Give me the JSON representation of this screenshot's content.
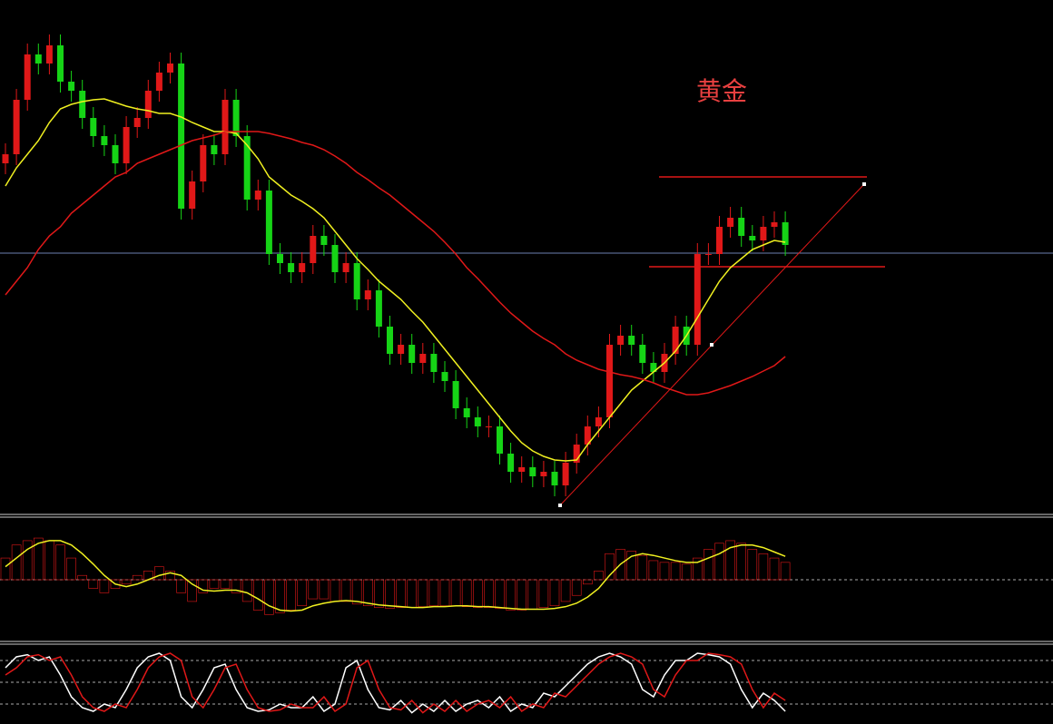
{
  "chart_data": [
    {
      "type": "candlestick",
      "title": "黄金",
      "ylim": [
        0,
        565
      ],
      "up_color": "#e01818",
      "down_color": "#16d416",
      "open": [
        385,
        395,
        455,
        505,
        495,
        515,
        475,
        465,
        435,
        415,
        405,
        385,
        425,
        435,
        465,
        485,
        495,
        335,
        365,
        405,
        395,
        455,
        415,
        345,
        355,
        285,
        275,
        265,
        275,
        305,
        295,
        265,
        275,
        235,
        245,
        205,
        175,
        185,
        165,
        175,
        155,
        145,
        115,
        105,
        95,
        95,
        65,
        45,
        50,
        40,
        45,
        30,
        55,
        75,
        95,
        105,
        185,
        195,
        185,
        165,
        155,
        175,
        205,
        185,
        285,
        285,
        315,
        325,
        305,
        300,
        315,
        320
      ],
      "high": [
        407,
        467,
        517,
        517,
        527,
        527,
        487,
        477,
        447,
        427,
        417,
        437,
        447,
        477,
        497,
        507,
        507,
        377,
        417,
        417,
        467,
        467,
        427,
        367,
        367,
        297,
        287,
        287,
        317,
        317,
        307,
        287,
        287,
        257,
        257,
        217,
        197,
        197,
        187,
        187,
        167,
        157,
        127,
        117,
        107,
        107,
        77,
        62,
        62,
        57,
        57,
        67,
        87,
        107,
        117,
        197,
        207,
        207,
        197,
        177,
        187,
        217,
        217,
        297,
        297,
        327,
        337,
        337,
        317,
        327,
        332,
        332
      ],
      "low": [
        373,
        383,
        443,
        483,
        483,
        463,
        453,
        423,
        403,
        393,
        373,
        373,
        413,
        423,
        453,
        473,
        323,
        323,
        353,
        383,
        383,
        403,
        333,
        333,
        273,
        263,
        253,
        253,
        263,
        283,
        253,
        253,
        223,
        223,
        193,
        163,
        163,
        153,
        153,
        143,
        133,
        103,
        93,
        83,
        83,
        53,
        33,
        33,
        28,
        28,
        18,
        18,
        43,
        63,
        83,
        93,
        173,
        173,
        153,
        143,
        143,
        163,
        173,
        173,
        273,
        273,
        303,
        293,
        288,
        288,
        303,
        283
      ],
      "close": [
        395,
        455,
        505,
        495,
        515,
        475,
        465,
        435,
        415,
        405,
        385,
        425,
        435,
        465,
        485,
        495,
        335,
        365,
        405,
        395,
        455,
        415,
        345,
        355,
        285,
        275,
        265,
        275,
        305,
        295,
        265,
        275,
        235,
        245,
        205,
        175,
        185,
        165,
        175,
        155,
        145,
        115,
        105,
        95,
        95,
        65,
        45,
        50,
        40,
        45,
        30,
        55,
        75,
        95,
        105,
        185,
        195,
        185,
        165,
        155,
        175,
        205,
        185,
        285,
        285,
        315,
        325,
        305,
        300,
        315,
        320,
        295
      ],
      "series": [
        {
          "color": "#f0f020",
          "values": [
            360,
            380,
            395,
            410,
            430,
            445,
            450,
            453,
            455,
            456,
            452,
            448,
            445,
            443,
            440,
            440,
            436,
            430,
            425,
            420,
            420,
            418,
            405,
            390,
            370,
            360,
            350,
            343,
            335,
            325,
            310,
            295,
            280,
            268,
            255,
            245,
            235,
            222,
            210,
            195,
            180,
            165,
            150,
            135,
            120,
            105,
            90,
            77,
            68,
            62,
            58,
            57,
            58,
            75,
            90,
            105,
            120,
            135,
            145,
            155,
            165,
            178,
            195,
            215,
            235,
            255,
            270,
            280,
            290,
            295,
            300,
            298
          ]
        },
        {
          "color": "#e01818",
          "values": [
            240,
            255,
            270,
            290,
            305,
            315,
            330,
            340,
            350,
            360,
            370,
            375,
            385,
            390,
            395,
            400,
            405,
            410,
            413,
            416,
            420,
            420,
            420,
            420,
            418,
            415,
            412,
            408,
            405,
            400,
            393,
            385,
            375,
            367,
            358,
            350,
            340,
            330,
            320,
            310,
            298,
            285,
            270,
            258,
            245,
            232,
            220,
            210,
            200,
            192,
            185,
            175,
            168,
            163,
            158,
            155,
            152,
            150,
            147,
            143,
            138,
            134,
            130,
            130,
            132,
            136,
            140,
            145,
            150,
            156,
            162,
            172
          ]
        }
      ]
    },
    {
      "type": "macd",
      "ylim": [
        -70,
        70
      ],
      "color": "#e01818",
      "values": [
        25,
        40,
        45,
        48,
        45,
        40,
        25,
        5,
        -10,
        -15,
        -10,
        -5,
        5,
        10,
        15,
        10,
        -15,
        -25,
        -15,
        -10,
        -10,
        -15,
        -25,
        -35,
        -40,
        -38,
        -35,
        -30,
        -22,
        -22,
        -25,
        -25,
        -28,
        -30,
        -32,
        -33,
        -32,
        -32,
        -31,
        -30,
        -30,
        -30,
        -31,
        -32,
        -32,
        -33,
        -35,
        -35,
        -34,
        -32,
        -30,
        -25,
        -18,
        -5,
        10,
        30,
        35,
        33,
        28,
        22,
        20,
        20,
        18,
        25,
        35,
        42,
        45,
        42,
        35,
        30,
        25,
        20
      ],
      "series": [
        {
          "color": "#f0f020",
          "values": [
            15,
            25,
            35,
            42,
            45,
            45,
            40,
            30,
            18,
            5,
            -5,
            -8,
            -5,
            0,
            5,
            8,
            5,
            -5,
            -12,
            -13,
            -12,
            -12,
            -15,
            -22,
            -30,
            -35,
            -36,
            -35,
            -30,
            -27,
            -25,
            -24,
            -25,
            -27,
            -29,
            -30,
            -31,
            -32,
            -32,
            -31,
            -31,
            -30,
            -30,
            -31,
            -31,
            -32,
            -33,
            -34,
            -34,
            -34,
            -33,
            -31,
            -27,
            -20,
            -10,
            5,
            18,
            27,
            30,
            28,
            25,
            22,
            20,
            20,
            25,
            30,
            37,
            40,
            40,
            37,
            32,
            27
          ]
        }
      ]
    },
    {
      "type": "stochastic",
      "ylim": [
        0,
        100
      ],
      "levels": [
        20,
        50,
        80
      ],
      "series": [
        {
          "color": "#ffffff",
          "values": [
            70,
            85,
            88,
            80,
            85,
            60,
            30,
            15,
            10,
            20,
            15,
            40,
            70,
            85,
            90,
            80,
            30,
            15,
            40,
            70,
            75,
            40,
            15,
            10,
            12,
            20,
            15,
            15,
            30,
            10,
            20,
            70,
            80,
            40,
            15,
            12,
            25,
            8,
            20,
            10,
            25,
            10,
            20,
            25,
            15,
            30,
            10,
            20,
            15,
            35,
            30,
            45,
            60,
            75,
            85,
            90,
            85,
            75,
            40,
            30,
            60,
            80,
            80,
            90,
            88,
            85,
            75,
            40,
            15,
            35,
            25,
            10
          ]
        },
        {
          "color": "#e01818",
          "values": [
            60,
            70,
            85,
            88,
            80,
            85,
            60,
            30,
            15,
            10,
            20,
            15,
            40,
            70,
            85,
            90,
            80,
            30,
            15,
            40,
            70,
            75,
            40,
            15,
            10,
            12,
            20,
            15,
            15,
            30,
            10,
            20,
            70,
            80,
            40,
            15,
            12,
            25,
            8,
            20,
            10,
            25,
            10,
            20,
            25,
            15,
            30,
            10,
            20,
            15,
            35,
            30,
            45,
            60,
            75,
            85,
            90,
            85,
            75,
            40,
            30,
            60,
            80,
            80,
            90,
            88,
            85,
            75,
            40,
            15,
            35,
            25
          ]
        }
      ]
    }
  ]
}
